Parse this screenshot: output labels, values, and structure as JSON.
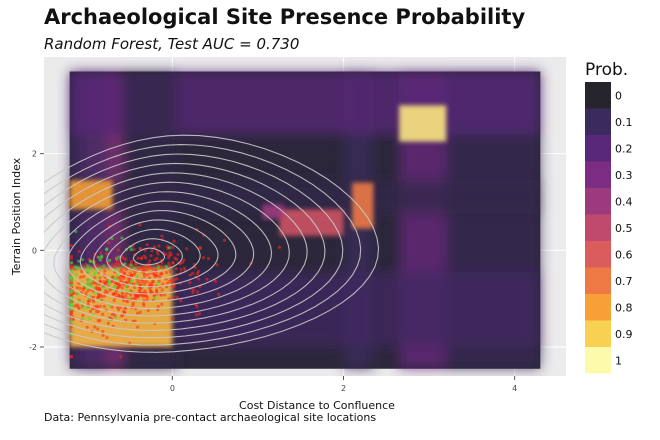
{
  "title": "Archaeological Site Presence Probability",
  "subtitle": "Random Forest, Test AUC = 0.730",
  "caption": "Data: Pennsylvania pre-contact archaeological site locations",
  "colors": {
    "panel_bg": "#ebebeb",
    "plot_bg": "#ffffff",
    "contour": "#c8c8c8",
    "site_red": "#ff2a1a",
    "site_green": "#39e63a"
  },
  "chart_data": {
    "type": "heatmap",
    "title": "Archaeological Site Presence Probability",
    "subtitle": "Random Forest, Test AUC = 0.730",
    "xlabel": "Cost Distance to Confluence",
    "ylabel": "Terrain Position Index",
    "x_ticks": [
      0,
      2,
      4
    ],
    "y_ticks": [
      -2,
      0,
      2
    ],
    "xlim": [
      -1.5,
      4.6
    ],
    "ylim": [
      -2.6,
      4.0
    ],
    "grid": true,
    "legend": {
      "title": "Prob.",
      "position": "right",
      "breaks": [
        "0",
        "0.1",
        "0.2",
        "0.3",
        "0.4",
        "0.5",
        "0.6",
        "0.7",
        "0.8",
        "0.9",
        "1"
      ],
      "colors": [
        "#26252d",
        "#3b2b5c",
        "#59287a",
        "#7b2c83",
        "#9d3a7d",
        "#bf4a6c",
        "#db5c5c",
        "#ed7a45",
        "#f7a035",
        "#f8d052",
        "#fcfbab"
      ]
    },
    "heatmap_extent": {
      "x": [
        -1.2,
        4.3
      ],
      "y": [
        -2.45,
        3.7
      ]
    },
    "base_probability": 0.03,
    "bands": [
      {
        "axis": "x",
        "range": [
          -1.05,
          -0.55
        ],
        "prob": 0.35
      },
      {
        "axis": "x",
        "range": [
          -1.2,
          -0.75
        ],
        "prob": 0.12
      },
      {
        "axis": "x",
        "range": [
          2.65,
          3.2
        ],
        "prob": 0.25
      },
      {
        "axis": "x",
        "range": [
          3.2,
          4.3
        ],
        "prob": 0.08
      },
      {
        "axis": "x",
        "range": [
          2.0,
          2.35
        ],
        "prob": 0.1
      },
      {
        "axis": "y",
        "range": [
          2.4,
          3.7
        ],
        "prob": 0.2
      },
      {
        "axis": "y",
        "range": [
          0.75,
          1.45
        ],
        "prob": 0.06
      },
      {
        "axis": "y",
        "range": [
          -0.45,
          -2.0
        ],
        "prob": 0.12
      },
      {
        "axis": "x",
        "range": [
          -0.6,
          0.05
        ],
        "prob": 0.06
      }
    ],
    "hotspots": [
      {
        "x": [
          -1.2,
          0.0
        ],
        "y": [
          -2.0,
          -0.35
        ],
        "prob": 0.85
      },
      {
        "x": [
          -1.2,
          -0.7
        ],
        "y": [
          0.85,
          1.45
        ],
        "prob": 0.8
      },
      {
        "x": [
          2.65,
          3.2
        ],
        "y": [
          2.25,
          3.0
        ],
        "prob": 0.95
      },
      {
        "x": [
          2.1,
          2.35
        ],
        "y": [
          0.45,
          1.4
        ],
        "prob": 0.7
      },
      {
        "x": [
          1.25,
          2.0
        ],
        "y": [
          0.3,
          0.85
        ],
        "prob": 0.55
      },
      {
        "x": [
          1.05,
          1.3
        ],
        "y": [
          0.65,
          0.95
        ],
        "prob": 0.4
      }
    ],
    "density_contours": {
      "center": {
        "x": -0.3,
        "y": -0.15
      },
      "levels": 13,
      "max_radius": {
        "x": 1.25,
        "y": 1.25
      }
    },
    "site_points": [
      {
        "name": "sites-red",
        "center": {
          "x": -0.5,
          "y": -0.7
        },
        "spread": {
          "x": 0.45,
          "y": 0.55
        },
        "count": 520
      },
      {
        "name": "sites-green",
        "center": {
          "x": -0.85,
          "y": -0.6
        },
        "spread": {
          "x": 0.3,
          "y": 0.55
        },
        "count": 120
      }
    ]
  }
}
